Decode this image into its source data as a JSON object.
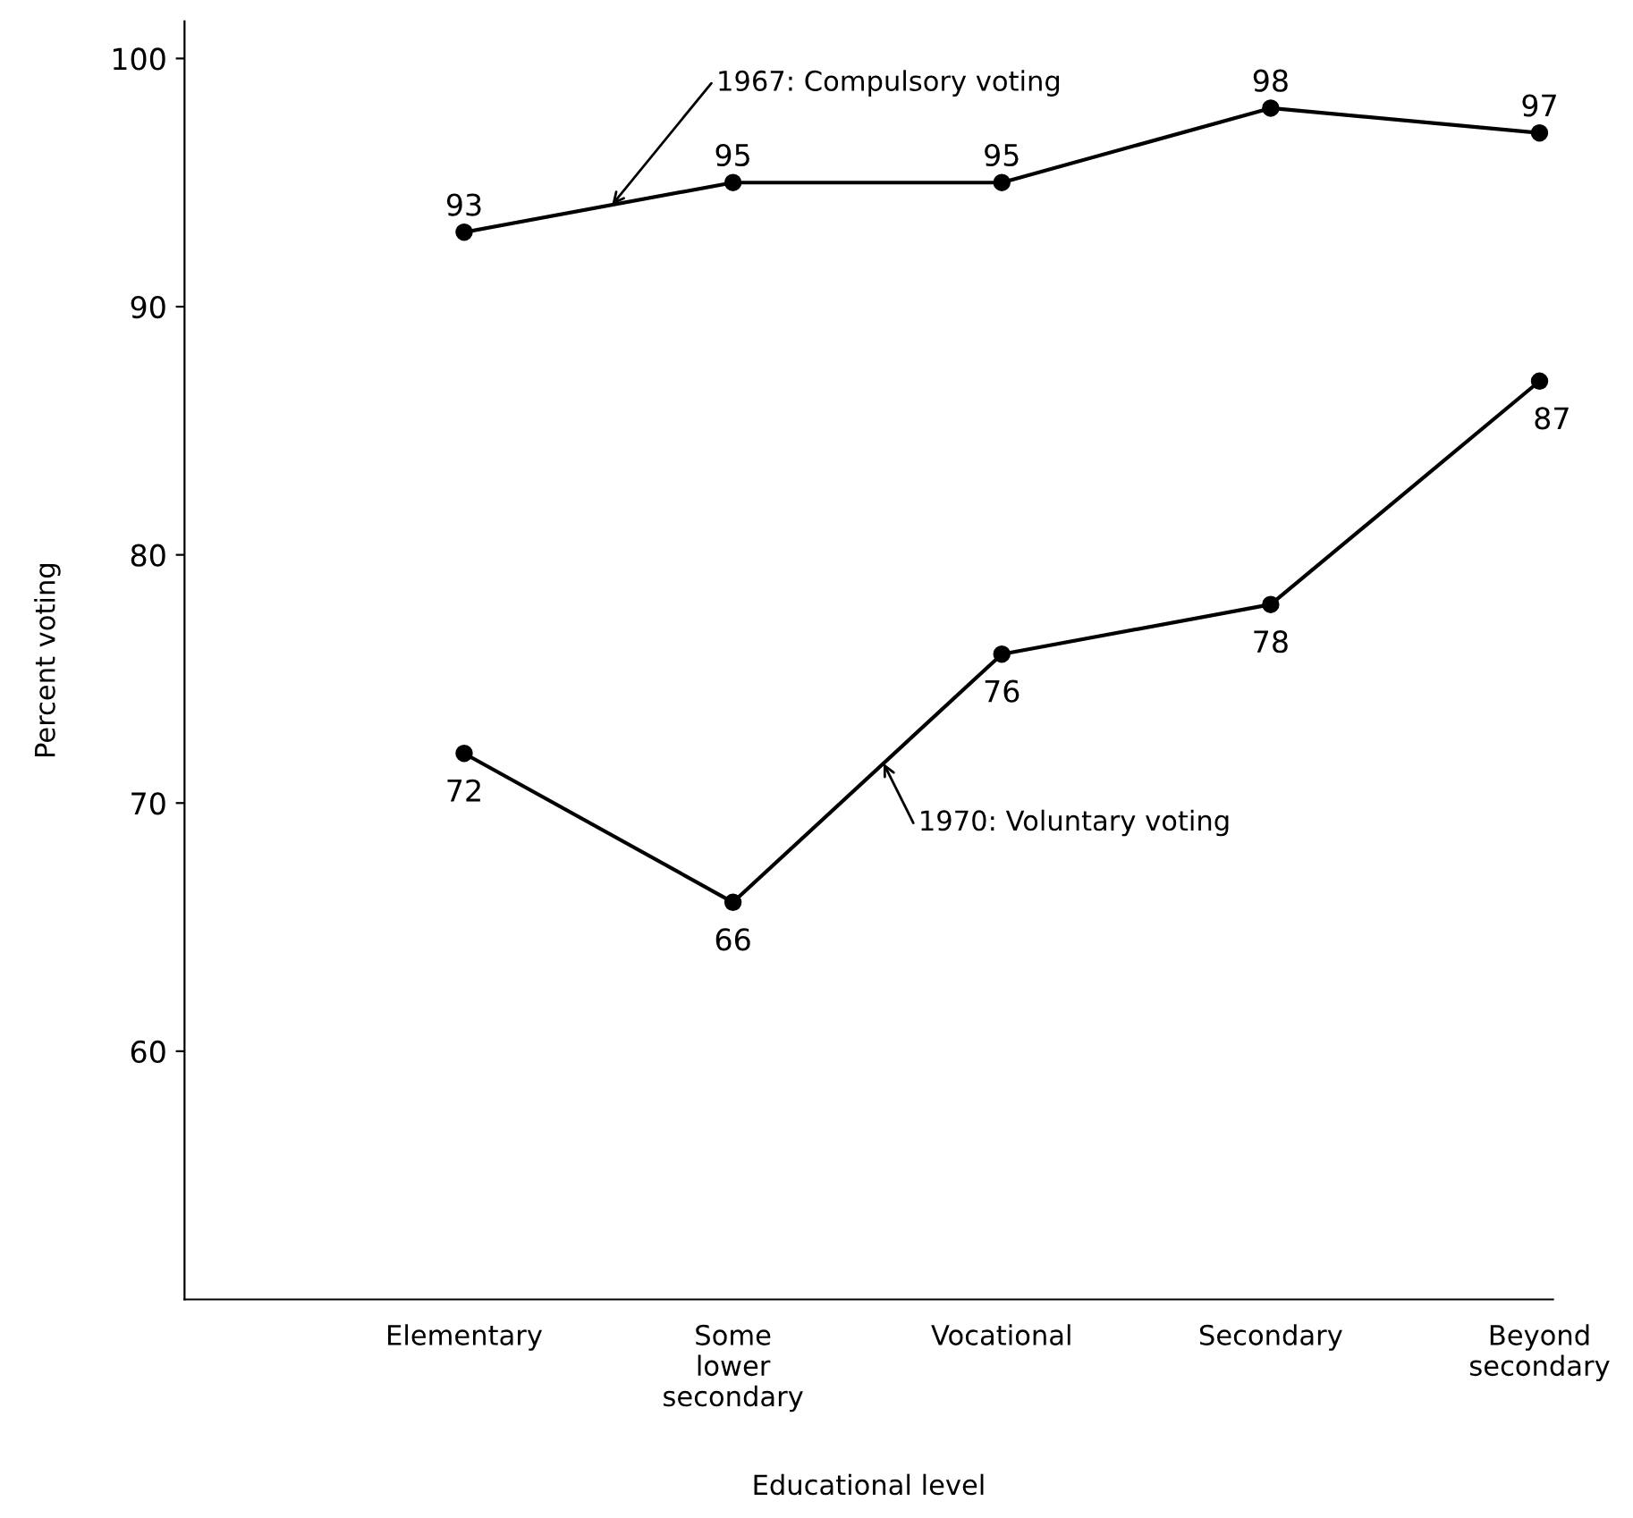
{
  "chart_data": {
    "type": "line",
    "categories": [
      "Elementary",
      "Some\nlower\nsecondary",
      "Vocational",
      "Secondary",
      "Beyond\nsecondary"
    ],
    "xlabel": "Educational level",
    "ylabel": "Percent voting",
    "ylim": [
      50,
      101.5
    ],
    "yticks": [
      60,
      70,
      80,
      90,
      100
    ],
    "series": [
      {
        "name": "1967: Compulsory voting",
        "color": "#000000",
        "values": [
          93,
          95,
          95,
          98,
          97
        ]
      },
      {
        "name": "1970: Voluntary voting",
        "color": "#000000",
        "values": [
          72,
          66,
          76,
          78,
          87
        ]
      }
    ],
    "marker": "circle",
    "line_style": "solid",
    "data_labels": true,
    "grid": false,
    "legend": false
  }
}
